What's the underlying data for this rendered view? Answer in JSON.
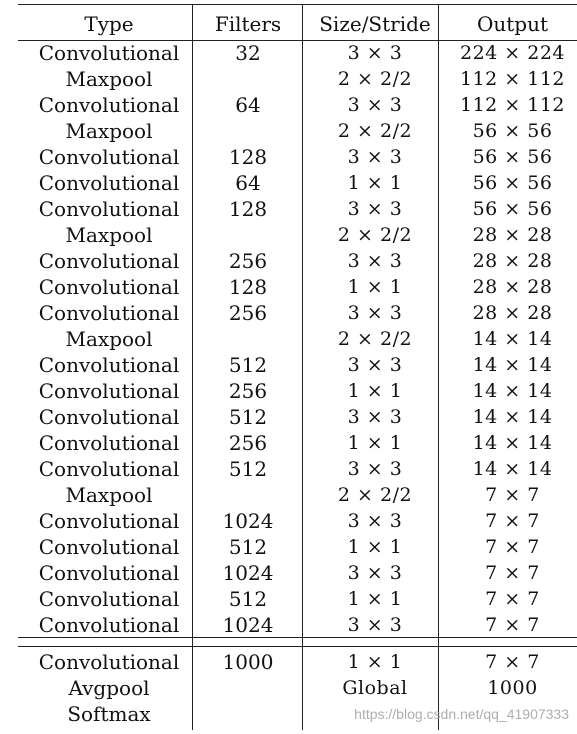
{
  "table": {
    "headers": [
      "Type",
      "Filters",
      "Size/Stride",
      "Output"
    ],
    "rows": [
      [
        "Convolutional",
        "32",
        "3 × 3",
        "224 × 224"
      ],
      [
        "Maxpool",
        "",
        "2 × 2/2",
        "112 × 112"
      ],
      [
        "Convolutional",
        "64",
        "3 × 3",
        "112 × 112"
      ],
      [
        "Maxpool",
        "",
        "2 × 2/2",
        "56 × 56"
      ],
      [
        "Convolutional",
        "128",
        "3 × 3",
        "56 × 56"
      ],
      [
        "Convolutional",
        "64",
        "1 × 1",
        "56 × 56"
      ],
      [
        "Convolutional",
        "128",
        "3 × 3",
        "56 × 56"
      ],
      [
        "Maxpool",
        "",
        "2 × 2/2",
        "28 × 28"
      ],
      [
        "Convolutional",
        "256",
        "3 × 3",
        "28 × 28"
      ],
      [
        "Convolutional",
        "128",
        "1 × 1",
        "28 × 28"
      ],
      [
        "Convolutional",
        "256",
        "3 × 3",
        "28 × 28"
      ],
      [
        "Maxpool",
        "",
        "2 × 2/2",
        "14 × 14"
      ],
      [
        "Convolutional",
        "512",
        "3 × 3",
        "14 × 14"
      ],
      [
        "Convolutional",
        "256",
        "1 × 1",
        "14 × 14"
      ],
      [
        "Convolutional",
        "512",
        "3 × 3",
        "14 × 14"
      ],
      [
        "Convolutional",
        "256",
        "1 × 1",
        "14 × 14"
      ],
      [
        "Convolutional",
        "512",
        "3 × 3",
        "14 × 14"
      ],
      [
        "Maxpool",
        "",
        "2 × 2/2",
        "7 × 7"
      ],
      [
        "Convolutional",
        "1024",
        "3 × 3",
        "7 × 7"
      ],
      [
        "Convolutional",
        "512",
        "1 × 1",
        "7 × 7"
      ],
      [
        "Convolutional",
        "1024",
        "3 × 3",
        "7 × 7"
      ],
      [
        "Convolutional",
        "512",
        "1 × 1",
        "7 × 7"
      ],
      [
        "Convolutional",
        "1024",
        "3 × 3",
        "7 × 7"
      ]
    ],
    "footer_rows": [
      [
        "Convolutional",
        "1000",
        "1 × 1",
        "7 × 7"
      ],
      [
        "Avgpool",
        "",
        "Global",
        "1000"
      ],
      [
        "Softmax",
        "",
        "",
        ""
      ]
    ]
  },
  "watermark": "https://blog.csdn.net/qq_41907333"
}
